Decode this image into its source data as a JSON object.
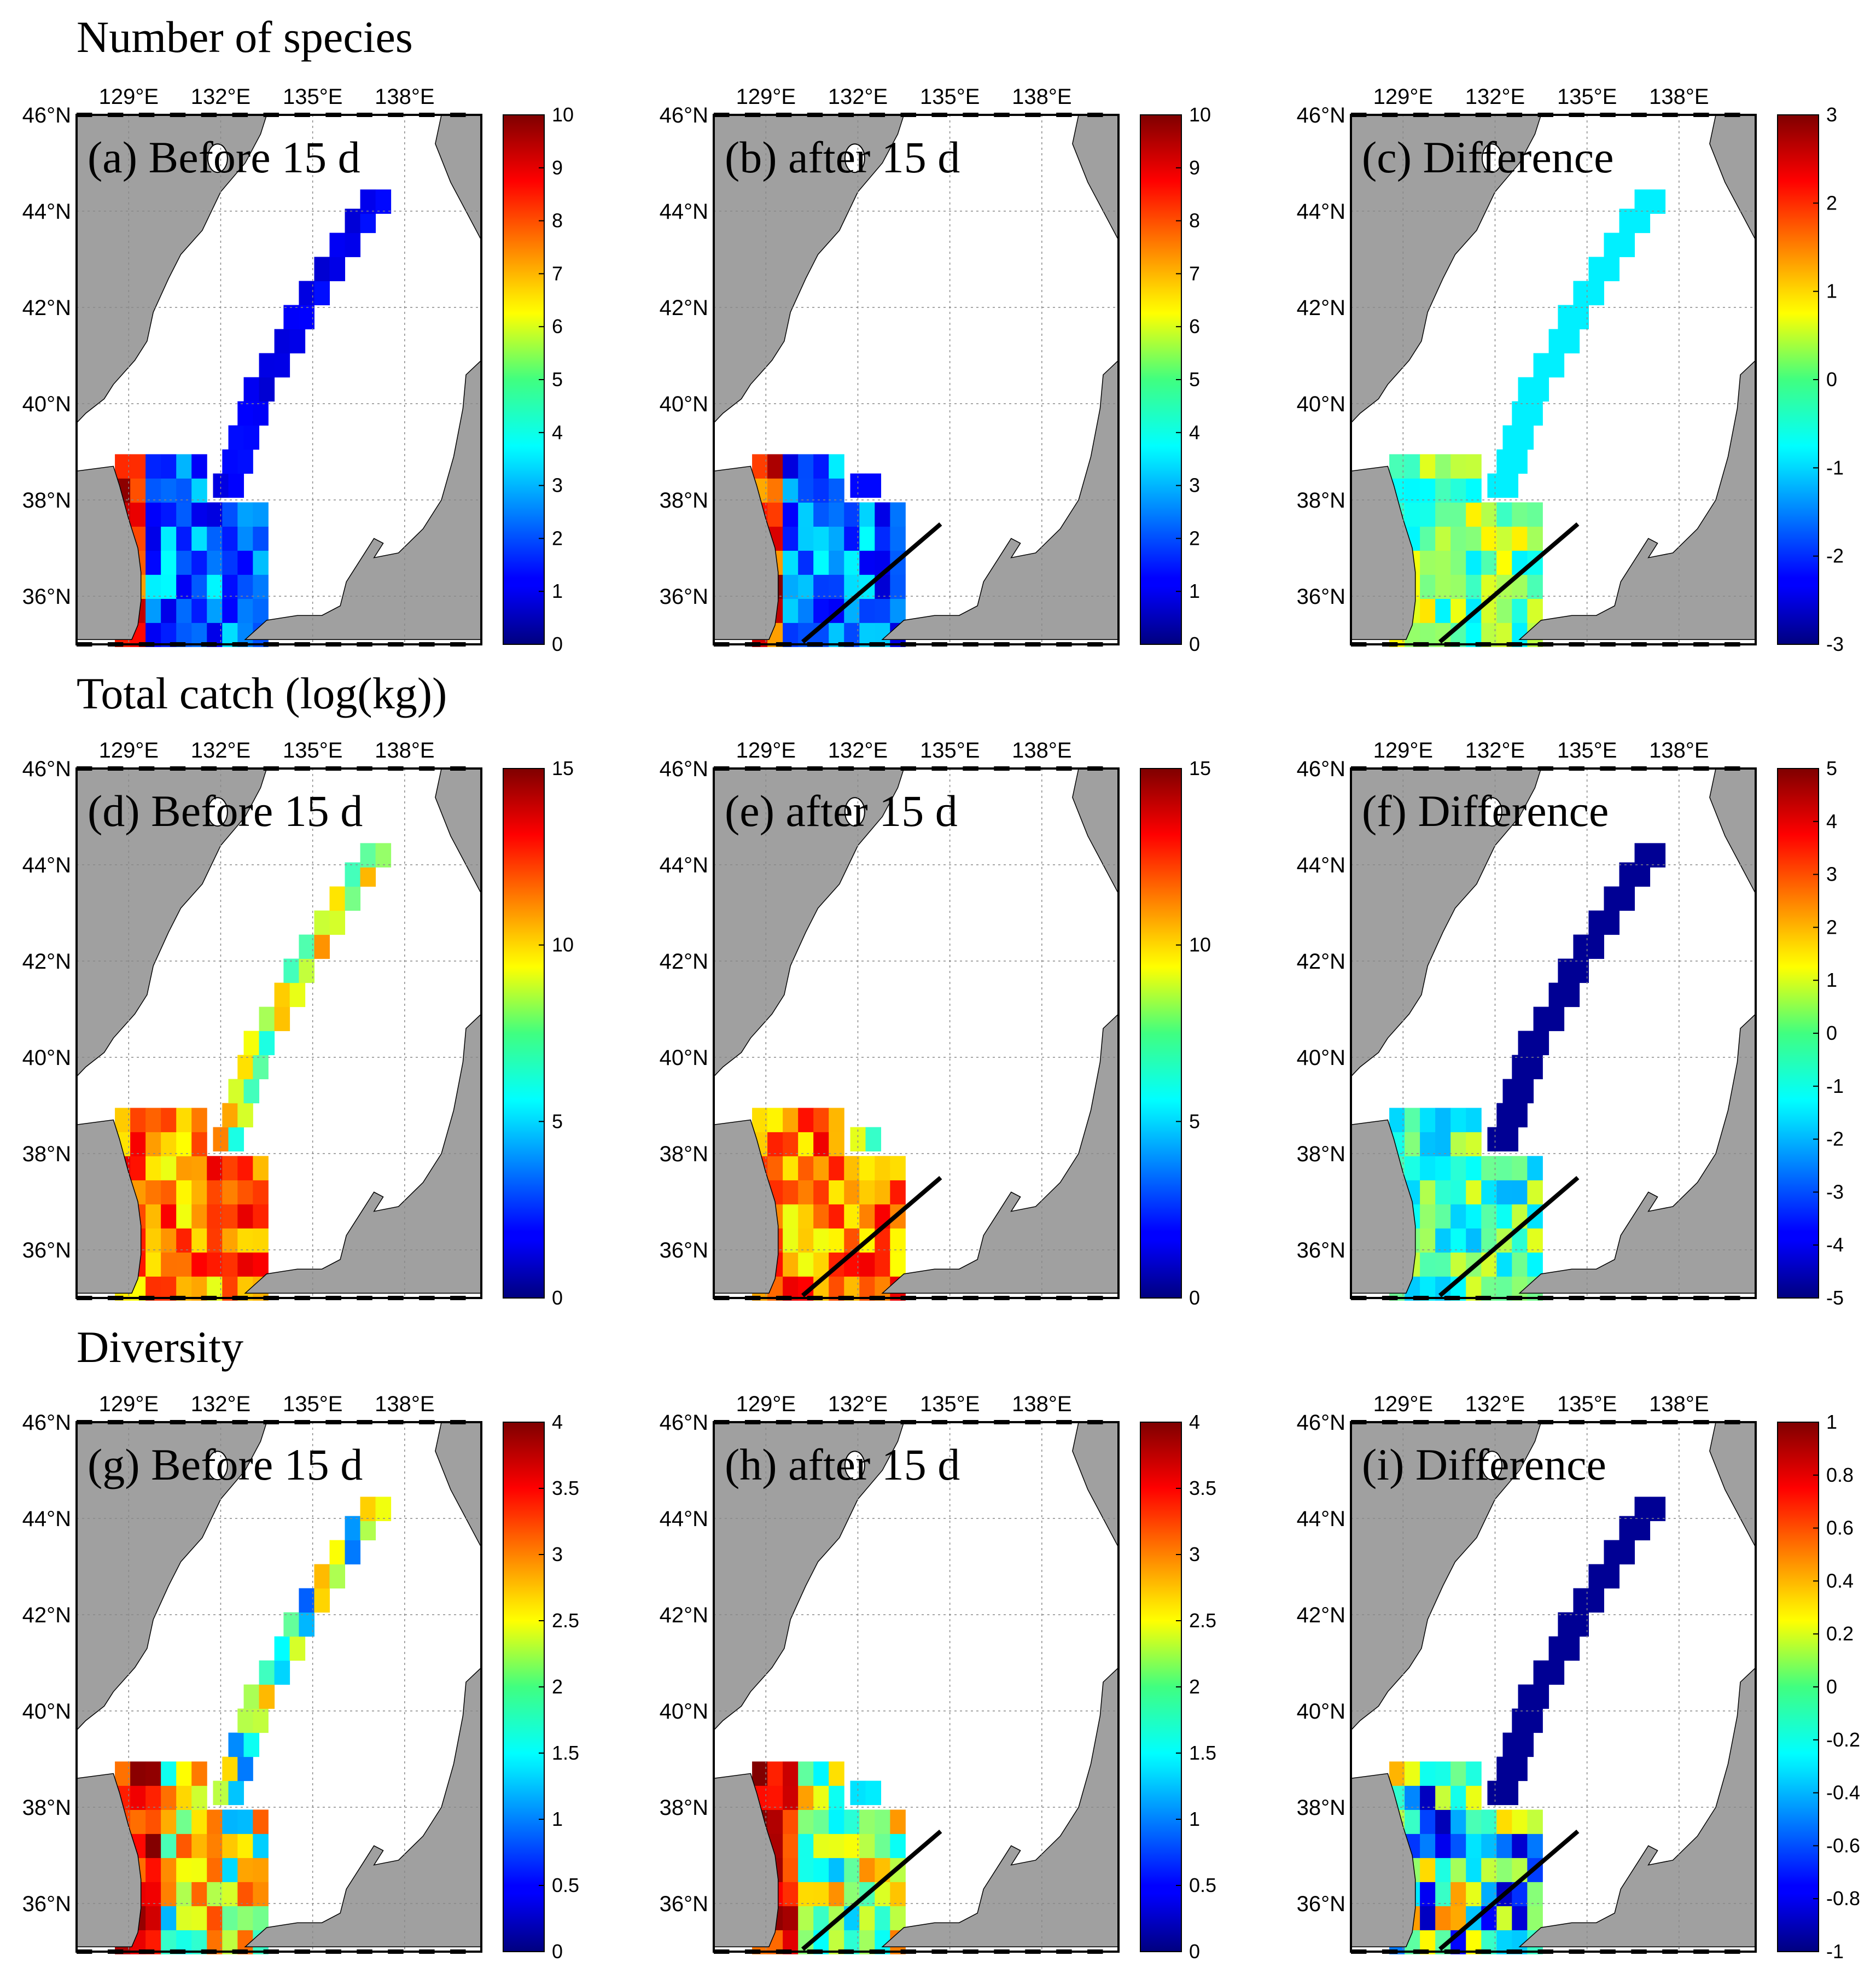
{
  "row_titles": [
    "Number of species",
    "Total catch (log(kg))",
    "Diversity"
  ],
  "map_axes": {
    "lon_ticks": [
      "129°E",
      "132°E",
      "135°E",
      "138°E"
    ],
    "lon_values": [
      129,
      132,
      135,
      138
    ],
    "lat_ticks": [
      "46°N",
      "44°N",
      "42°N",
      "40°N",
      "38°N",
      "36°N"
    ],
    "lat_values": [
      46,
      44,
      42,
      40,
      38,
      36
    ],
    "xlim": [
      127.3,
      140.5
    ],
    "ylim": [
      35,
      46
    ],
    "land_color": "#a0a0a0",
    "sea_color": "#ffffff",
    "grid": true
  },
  "colormap": "jet",
  "chart_data": [
    {
      "type": "heatmap",
      "panel": "a",
      "label": "(a) Before 15 d",
      "colorbar": {
        "min": 0,
        "max": 10,
        "ticks": [
          "0",
          "1",
          "2",
          "3",
          "4",
          "5",
          "6",
          "7",
          "8",
          "9",
          "10"
        ]
      },
      "dummy_ref": 0
    },
    {
      "type": "heatmap",
      "panel": "b",
      "label": "(b) after 15 d",
      "colorbar": {
        "min": 0,
        "max": 10,
        "ticks": [
          "0",
          "1",
          "2",
          "3",
          "4",
          "5",
          "6",
          "7",
          "8",
          "9",
          "10"
        ]
      },
      "line": true
    },
    {
      "type": "heatmap",
      "panel": "c",
      "label": "(c) Difference",
      "colorbar": {
        "min": -3,
        "max": 3,
        "ticks": [
          "-3",
          "-2",
          "-1",
          "0",
          "1",
          "2",
          "3"
        ]
      },
      "line": true
    },
    {
      "type": "heatmap",
      "panel": "d",
      "label": "(d) Before 15 d",
      "colorbar": {
        "min": 0,
        "max": 15,
        "ticks": [
          "0",
          "5",
          "10",
          "15"
        ]
      }
    },
    {
      "type": "heatmap",
      "panel": "e",
      "label": "(e) after 15 d",
      "colorbar": {
        "min": 0,
        "max": 15,
        "ticks": [
          "0",
          "5",
          "10",
          "15"
        ]
      },
      "line": true
    },
    {
      "type": "heatmap",
      "panel": "f",
      "label": "(f) Difference",
      "colorbar": {
        "min": -5,
        "max": 5,
        "ticks": [
          "-5",
          "-4",
          "-3",
          "-2",
          "-1",
          "0",
          "1",
          "2",
          "3",
          "4",
          "5"
        ]
      },
      "line": true
    },
    {
      "type": "heatmap",
      "panel": "g",
      "label": "(g) Before 15 d",
      "colorbar": {
        "min": 0,
        "max": 4,
        "ticks": [
          "0",
          "0.5",
          "1",
          "1.5",
          "2",
          "2.5",
          "3",
          "3.5",
          "4"
        ]
      }
    },
    {
      "type": "heatmap",
      "panel": "h",
      "label": "(h) after 15 d",
      "colorbar": {
        "min": 0,
        "max": 4,
        "ticks": [
          "0",
          "0.5",
          "1",
          "1.5",
          "2",
          "2.5",
          "3",
          "3.5",
          "4"
        ]
      },
      "line": true
    },
    {
      "type": "heatmap",
      "panel": "i",
      "label": "(i) Difference",
      "colorbar": {
        "min": -1,
        "max": 1,
        "ticks": [
          "-1",
          "-0.8",
          "-0.6",
          "-0.4",
          "-0.2",
          "0",
          "0.2",
          "0.4",
          "0.6",
          "0.8",
          "1"
        ]
      },
      "line": true
    }
  ]
}
